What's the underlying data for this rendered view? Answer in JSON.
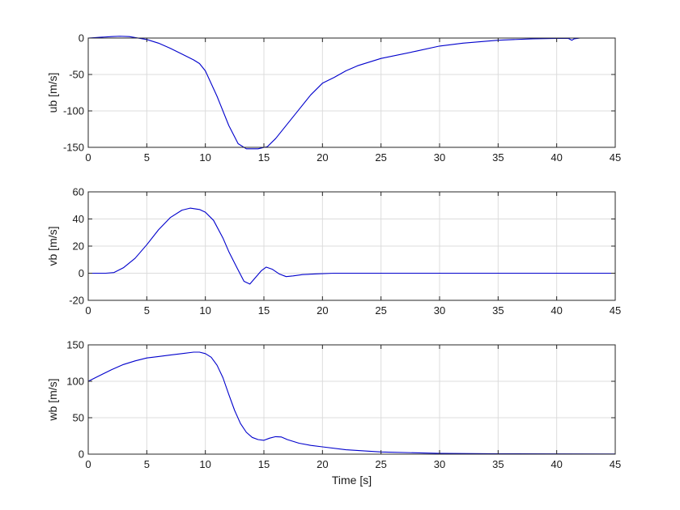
{
  "chart_data": [
    {
      "type": "line",
      "xlabel": "",
      "ylabel": "ub [m/s]",
      "xlim": [
        0,
        45
      ],
      "ylim": [
        -150,
        0
      ],
      "xticks": [
        0,
        5,
        10,
        15,
        20,
        25,
        30,
        35,
        40,
        45
      ],
      "yticks": [
        -150,
        -100,
        -50,
        0
      ],
      "grid": true,
      "color": "#0000cc",
      "series": [
        {
          "x": [
            0,
            1,
            2,
            2.7,
            3.5,
            5,
            6,
            7,
            8,
            9,
            9.5,
            10,
            11,
            12,
            12.8,
            13.5,
            14.5,
            15.3,
            16,
            17,
            18,
            19,
            20,
            21,
            22,
            23,
            25,
            28,
            30,
            32,
            35,
            38,
            40,
            41,
            41.3,
            41.5,
            42,
            43,
            45
          ],
          "y": [
            0,
            1,
            2,
            2.5,
            2,
            -2,
            -7,
            -14,
            -22,
            -30,
            -35,
            -45,
            -80,
            -120,
            -145,
            -152,
            -152,
            -149,
            -138,
            -118,
            -98,
            -78,
            -62,
            -54,
            -45,
            -38,
            -28,
            -18,
            -11,
            -7,
            -3,
            -1,
            -0.5,
            -0.5,
            -3,
            -1,
            0,
            0,
            0
          ]
        }
      ]
    },
    {
      "type": "line",
      "xlabel": "",
      "ylabel": "vb [m/s]",
      "xlim": [
        0,
        45
      ],
      "ylim": [
        -20,
        60
      ],
      "xticks": [
        0,
        5,
        10,
        15,
        20,
        25,
        30,
        35,
        40,
        45
      ],
      "yticks": [
        -20,
        0,
        20,
        40,
        60
      ],
      "grid": true,
      "color": "#0000cc",
      "series": [
        {
          "x": [
            0,
            1.5,
            2.2,
            3,
            4,
            5,
            6,
            7,
            8,
            8.7,
            9.5,
            10,
            10.7,
            11.5,
            12,
            12.7,
            13.3,
            13.8,
            14.3,
            14.8,
            15.2,
            15.7,
            16.3,
            16.9,
            17.5,
            18.3,
            19.5,
            21,
            25,
            30,
            35,
            40,
            45
          ],
          "y": [
            0,
            0,
            0.5,
            4,
            11,
            21,
            32,
            41,
            46.5,
            48,
            47,
            45,
            39,
            26,
            16,
            4,
            -6,
            -8,
            -3,
            2,
            4.5,
            3,
            -0.5,
            -2.5,
            -2,
            -1,
            -0.5,
            0,
            0,
            0,
            0,
            0,
            0
          ]
        }
      ]
    },
    {
      "type": "line",
      "xlabel": "Time [s]",
      "ylabel": "wb [m/s]",
      "xlim": [
        0,
        45
      ],
      "ylim": [
        0,
        150
      ],
      "xticks": [
        0,
        5,
        10,
        15,
        20,
        25,
        30,
        35,
        40,
        45
      ],
      "yticks": [
        0,
        50,
        100,
        150
      ],
      "grid": true,
      "color": "#0000cc",
      "series": [
        {
          "x": [
            0,
            1,
            2,
            3,
            4,
            5,
            6,
            7,
            8,
            9,
            9.5,
            10,
            10.5,
            11,
            11.5,
            12,
            12.5,
            13,
            13.5,
            14,
            14.5,
            15,
            15.5,
            16,
            16.5,
            17,
            18,
            19,
            20,
            22,
            25,
            30,
            35,
            40,
            45
          ],
          "y": [
            100,
            108,
            116,
            123,
            128,
            132,
            134,
            136,
            138,
            140,
            140,
            138,
            133,
            122,
            105,
            82,
            60,
            42,
            30,
            23,
            20,
            19,
            22,
            24,
            23.5,
            20,
            15,
            12,
            10,
            6,
            3,
            1,
            0.5,
            0.3,
            0.2
          ]
        }
      ]
    }
  ]
}
